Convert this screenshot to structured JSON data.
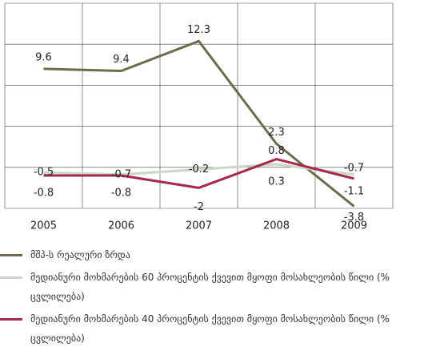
{
  "chart_data": {
    "type": "line",
    "categories": [
      "2005",
      "2006",
      "2007",
      "2008",
      "2009"
    ],
    "series": [
      {
        "name": "მშპ-ს რეალური ზრდა",
        "color": "#6e6b4b",
        "values": [
          9.6,
          9.4,
          12.3,
          2.3,
          -3.8
        ]
      },
      {
        "name": "მედიანური მოხმარების 60 პროცენტის ქვევით  მყოფი მოსახლეობის წილი (% ცვლილება)",
        "color": "#c9d7c4",
        "values": [
          -0.5,
          -0.7,
          -0.2,
          0.3,
          -0.7
        ]
      },
      {
        "name": "მედიანური მოხმარების 40 პროცენტის ქვევით  მყოფი მოსახლეობის წილი (% ცვლილება)",
        "color": "#a8284e",
        "values": [
          -0.8,
          -0.8,
          -2,
          0.8,
          -1.1
        ]
      }
    ],
    "ylim": [
      -4,
      16
    ],
    "yticks": [
      -4,
      0,
      4,
      8,
      12,
      16
    ],
    "show_ytick_labels": false,
    "grid": true,
    "data_labels": true
  }
}
